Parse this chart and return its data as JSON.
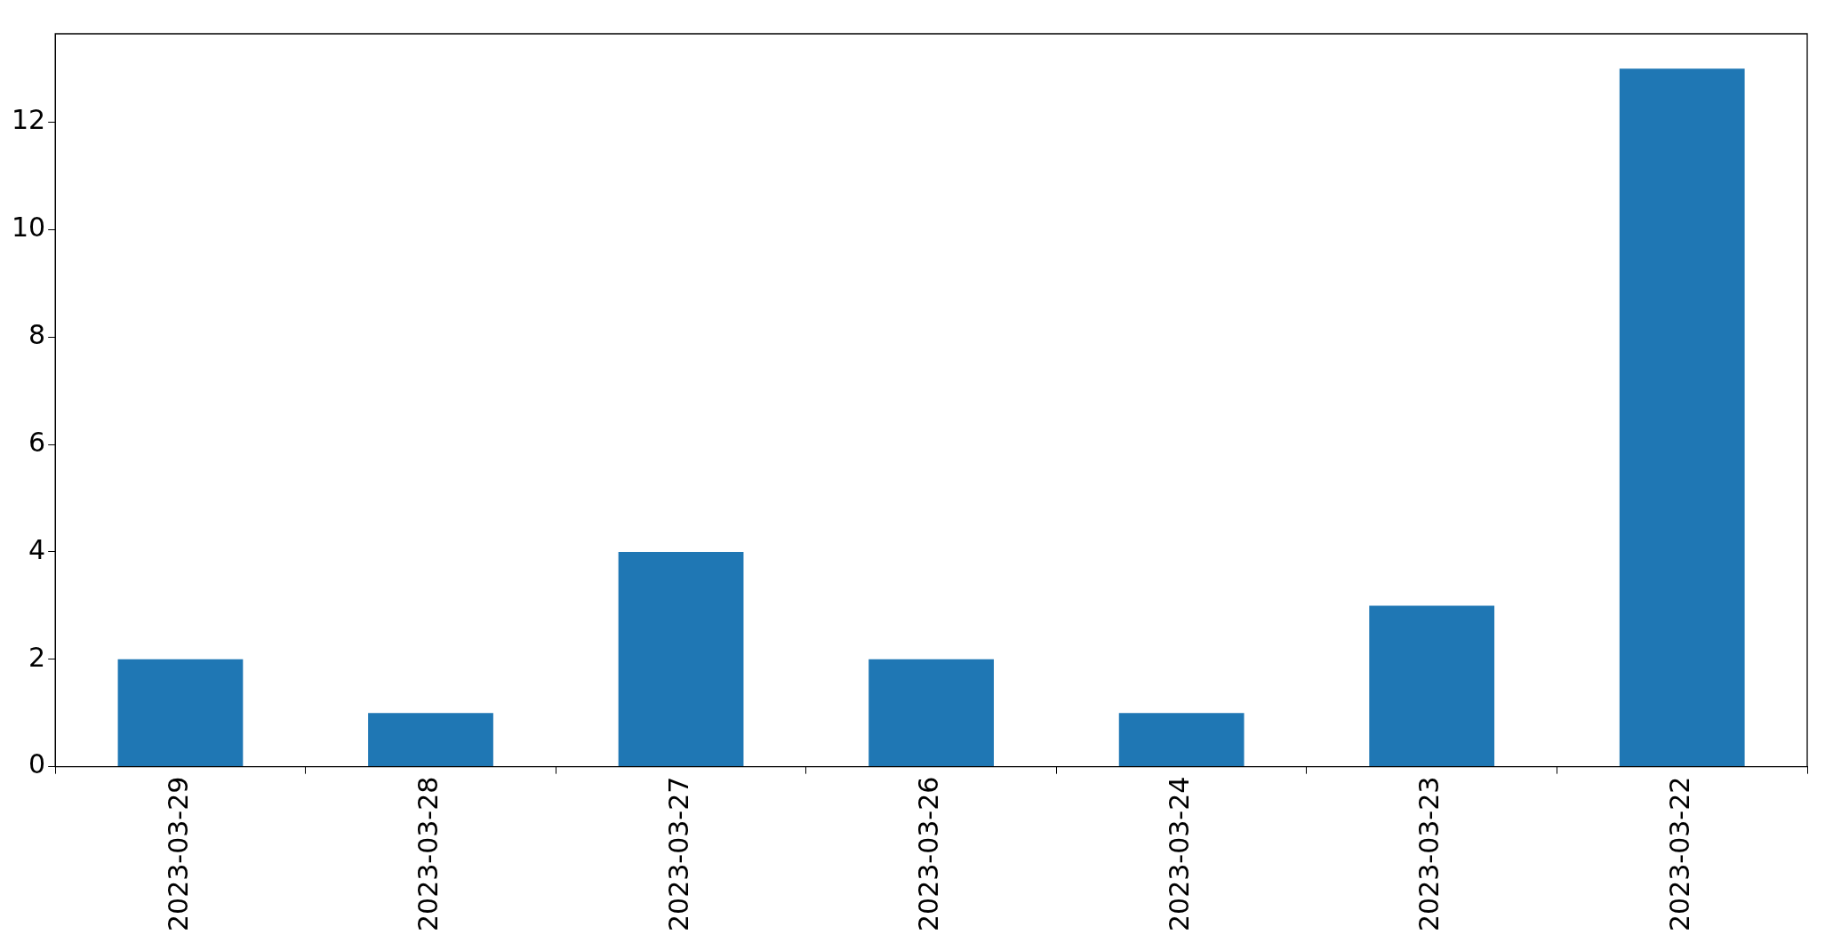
{
  "chart_data": {
    "type": "bar",
    "categories": [
      "2023-03-29",
      "2023-03-28",
      "2023-03-27",
      "2023-03-26",
      "2023-03-24",
      "2023-03-23",
      "2023-03-22"
    ],
    "values": [
      2,
      1,
      4,
      2,
      1,
      3,
      13
    ],
    "color": "#1f77b4",
    "ylim": [
      0,
      13.65
    ],
    "yticks": [
      0,
      2,
      4,
      6,
      8,
      10,
      12
    ],
    "grid": false,
    "legend": false
  }
}
